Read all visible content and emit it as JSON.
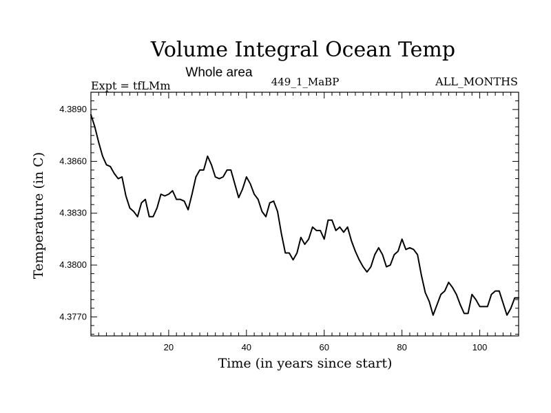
{
  "chart_data": {
    "type": "line",
    "title": "Volume Integral Ocean Temp",
    "subtitle": "Whole area",
    "left_label": "Expt = tfLMm",
    "center_label": "449_1_MaBP",
    "right_label": "ALL_MONTHS",
    "xlabel": "Time (in years since start)",
    "ylabel": "Temperature (in C)",
    "xlim": [
      0,
      110
    ],
    "ylim": [
      4.3759,
      4.39
    ],
    "xticks": [
      20,
      40,
      60,
      80,
      100
    ],
    "xtick_labels": [
      "20",
      "40",
      "60",
      "80",
      "100"
    ],
    "yticks": [
      4.377,
      4.38,
      4.383,
      4.386,
      4.389
    ],
    "ytick_labels": [
      "4.3770",
      "4.3800",
      "4.3830",
      "4.3860",
      "4.3890"
    ],
    "series": [
      {
        "name": "Volume integral ocean temperature",
        "color": "#000000",
        "x": [
          0,
          1,
          2,
          3,
          4,
          5,
          6,
          7,
          8,
          9,
          10,
          11,
          12,
          13,
          14,
          15,
          16,
          17,
          18,
          19,
          20,
          21,
          22,
          23,
          24,
          25,
          26,
          27,
          28,
          29,
          30,
          31,
          32,
          33,
          34,
          35,
          36,
          37,
          38,
          39,
          40,
          41,
          42,
          43,
          44,
          45,
          46,
          47,
          48,
          49,
          50,
          51,
          52,
          53,
          54,
          55,
          56,
          57,
          58,
          59,
          60,
          61,
          62,
          63,
          64,
          65,
          66,
          67,
          68,
          69,
          70,
          71,
          72,
          73,
          74,
          75,
          76,
          77,
          78,
          79,
          80,
          81,
          82,
          83,
          84,
          85,
          86,
          87,
          88,
          89,
          90,
          91,
          92,
          93,
          94,
          95,
          96,
          97,
          98,
          99,
          100,
          101,
          102,
          103,
          104,
          105,
          106,
          107,
          108,
          109,
          110
        ],
        "values": [
          4.3887,
          4.388,
          4.3871,
          4.3863,
          4.3858,
          4.3857,
          4.3853,
          4.385,
          4.3851,
          4.384,
          4.3833,
          4.3831,
          4.3828,
          4.3836,
          4.3838,
          4.3828,
          4.3828,
          4.3833,
          4.3841,
          4.384,
          4.3841,
          4.3843,
          4.3838,
          4.3838,
          4.3837,
          4.3832,
          4.3841,
          4.3851,
          4.3855,
          4.3855,
          4.3863,
          4.3858,
          4.3851,
          4.385,
          4.3851,
          4.3855,
          4.3855,
          4.3847,
          4.3839,
          4.3844,
          4.3851,
          4.3847,
          4.3841,
          4.3838,
          4.3831,
          4.3828,
          4.3836,
          4.3837,
          4.3831,
          4.3818,
          4.3807,
          4.3807,
          4.3803,
          4.3807,
          4.3816,
          4.3812,
          4.3815,
          4.3822,
          4.382,
          4.382,
          4.3815,
          4.3826,
          4.3826,
          4.382,
          4.3822,
          4.3819,
          4.3822,
          4.3814,
          4.3808,
          4.3803,
          4.3799,
          4.3796,
          4.3799,
          4.3806,
          4.381,
          4.3806,
          4.3799,
          4.38,
          4.3806,
          4.3808,
          4.3815,
          4.3809,
          4.381,
          4.3809,
          4.3806,
          4.3794,
          4.3784,
          4.3779,
          4.3771,
          4.3777,
          4.3783,
          4.3785,
          4.379,
          4.3787,
          4.3783,
          4.3777,
          4.3772,
          4.3772,
          4.3783,
          4.378,
          4.3776,
          4.3776,
          4.3776,
          4.3783,
          4.3785,
          4.3785,
          4.3778,
          4.3771,
          4.3775,
          4.3781,
          4.3781
        ]
      }
    ]
  }
}
